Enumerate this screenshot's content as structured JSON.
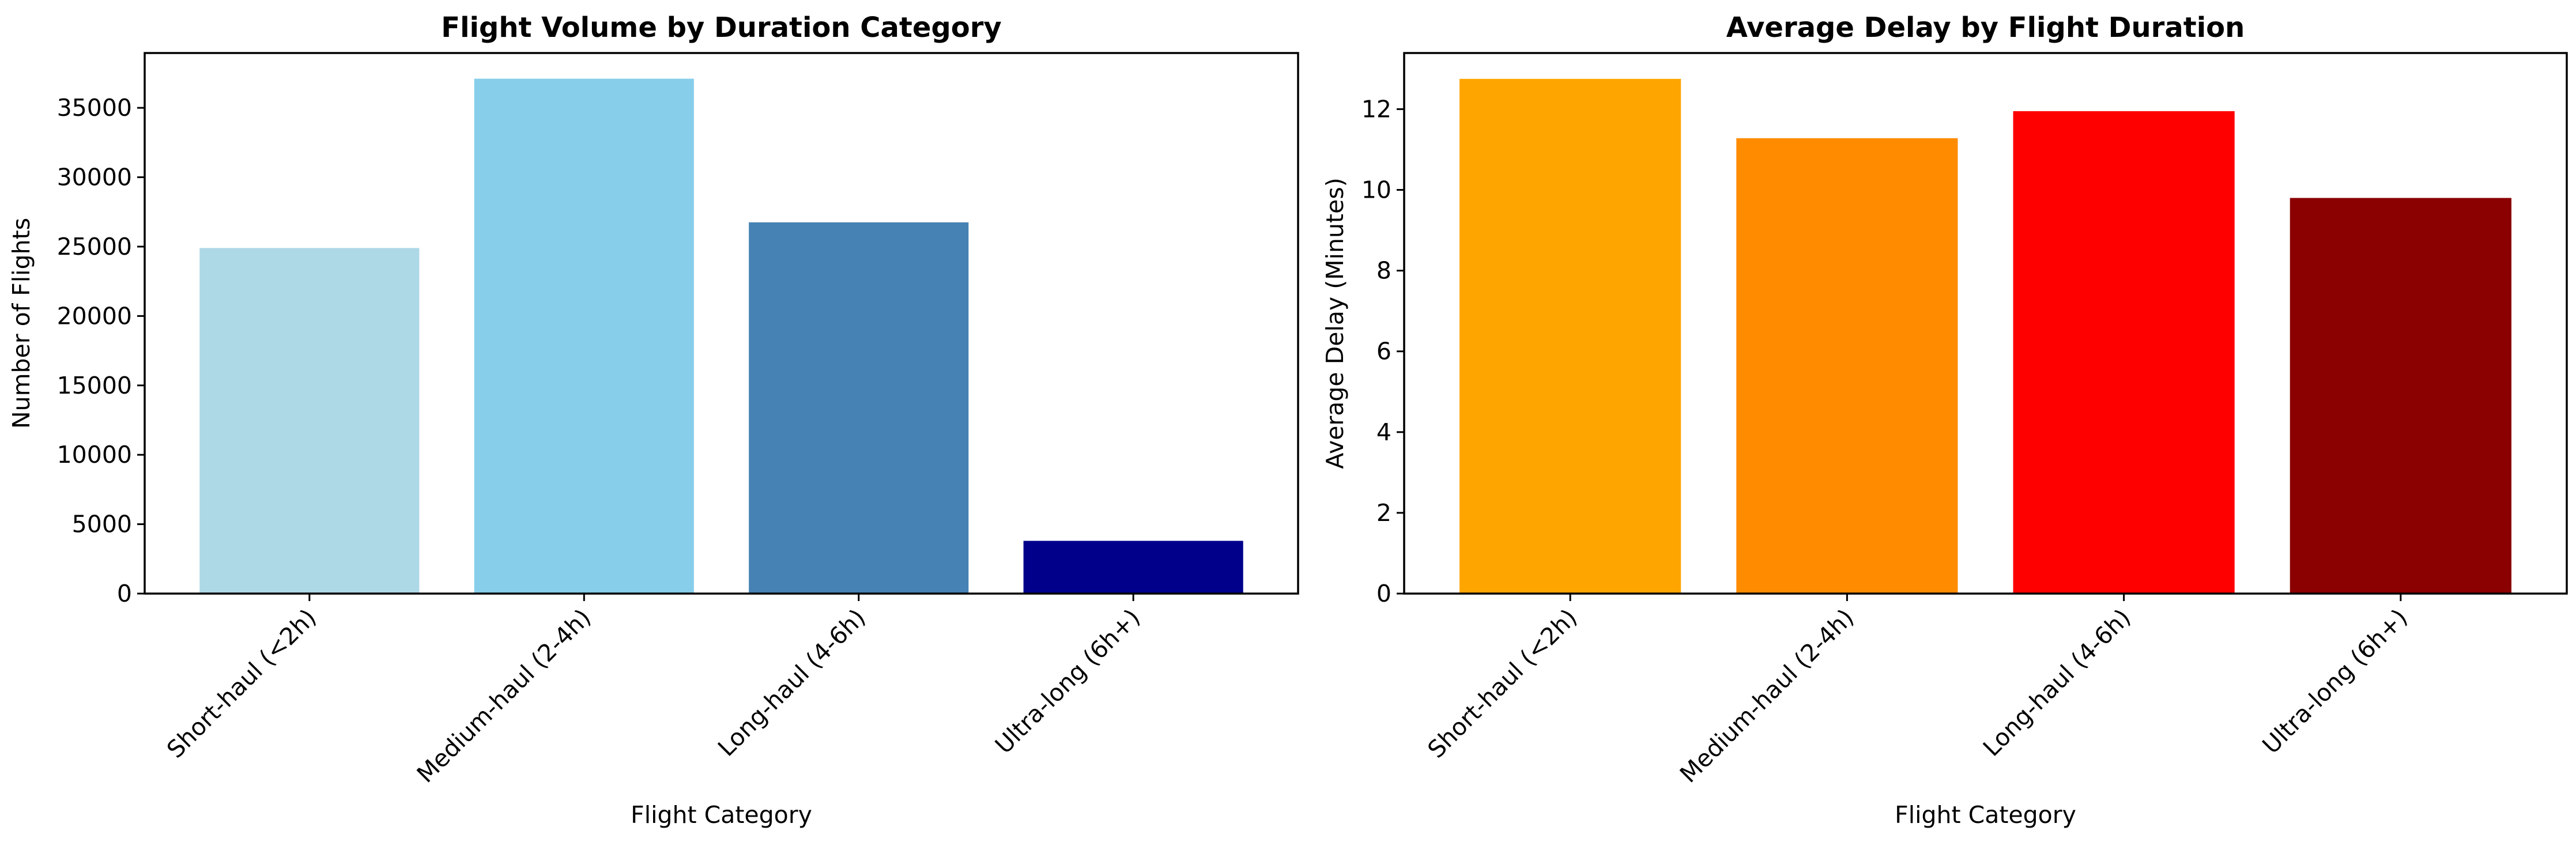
{
  "chart_data": [
    {
      "type": "bar",
      "title": "Flight Volume by Duration Category",
      "xlabel": "Flight Category",
      "ylabel": "Number of Flights",
      "categories": [
        "Short-haul (<2h)",
        "Medium-haul (2-4h)",
        "Long-haul (4-6h)",
        "Ultra-long (6h+)"
      ],
      "values": [
        24900,
        37100,
        26750,
        3800
      ],
      "colors": [
        "#add8e6",
        "#87ceeb",
        "#4682b4",
        "#00008b"
      ],
      "ylim": [
        0,
        38950
      ],
      "yticks": [
        0,
        5000,
        10000,
        15000,
        20000,
        25000,
        30000,
        35000
      ],
      "grid": false
    },
    {
      "type": "bar",
      "title": "Average Delay by Flight Duration",
      "xlabel": "Flight Category",
      "ylabel": "Average Delay (Minutes)",
      "categories": [
        "Short-haul (<2h)",
        "Medium-haul (2-4h)",
        "Long-haul (4-6h)",
        "Ultra-long (6h+)"
      ],
      "values": [
        12.75,
        11.28,
        11.95,
        9.8
      ],
      "colors": [
        "#ffa500",
        "#ff8c00",
        "#ff0000",
        "#8b0000"
      ],
      "ylim": [
        0,
        13.39
      ],
      "yticks": [
        0,
        2,
        4,
        6,
        8,
        10,
        12
      ],
      "grid": false
    }
  ]
}
